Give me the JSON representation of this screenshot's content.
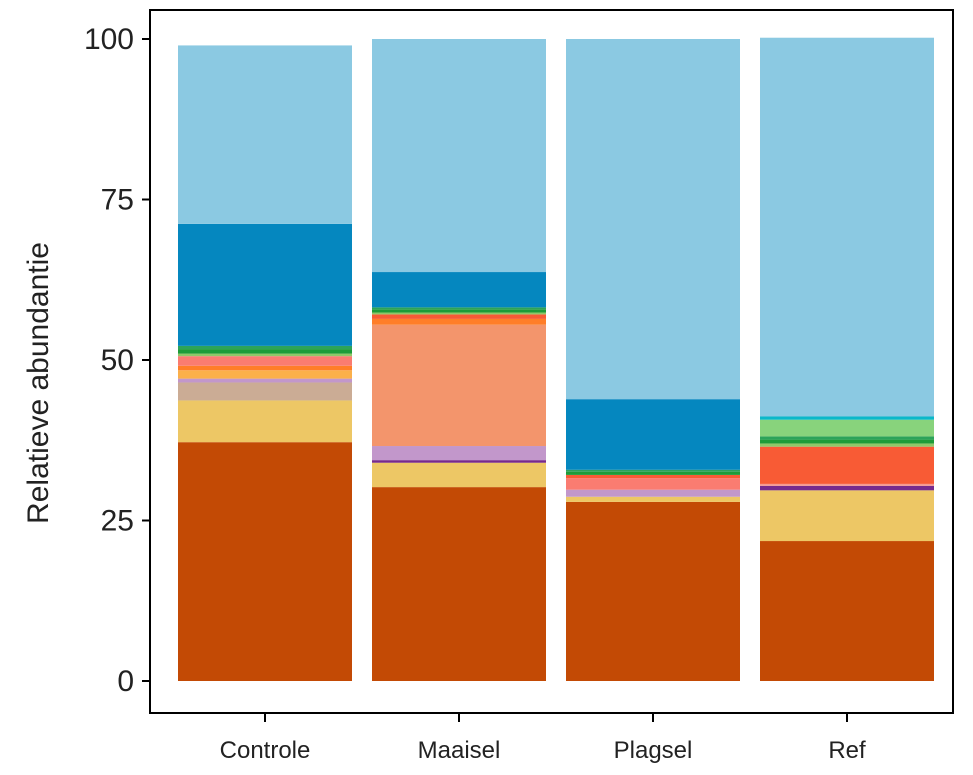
{
  "chart_data": {
    "type": "bar",
    "stacked": true,
    "title": "",
    "xlabel": "",
    "ylabel": "Relatieve abundantie",
    "ylim": [
      0,
      100
    ],
    "yticks": [
      "0",
      "25",
      "50",
      "75",
      "100"
    ],
    "grid": false,
    "legend": "none",
    "categories": [
      "Controle",
      "Maaisel",
      "Plagsel",
      "Ref"
    ],
    "series": [
      {
        "color": "#c34a05",
        "values": [
          37.2,
          30.2,
          27.9,
          21.8
        ]
      },
      {
        "color": "#edc765",
        "values": [
          6.5,
          3.8,
          0.8,
          7.9
        ]
      },
      {
        "color": "#cbac95",
        "values": [
          2.8,
          0,
          0,
          0
        ]
      },
      {
        "color": "#772a8c",
        "values": [
          0,
          0.4,
          0,
          0.7
        ]
      },
      {
        "color": "#c297cb",
        "values": [
          0.6,
          2.2,
          1.1,
          0
        ]
      },
      {
        "color": "#f69a91",
        "values": [
          0,
          0,
          0,
          0.3
        ]
      },
      {
        "color": "#f3956c",
        "values": [
          0,
          18.9,
          0,
          0
        ]
      },
      {
        "color": "#fbb04a",
        "values": [
          1.3,
          0,
          0,
          0
        ]
      },
      {
        "color": "#ff7e29",
        "values": [
          0.7,
          0.9,
          0,
          0
        ]
      },
      {
        "color": "#fa7c71",
        "values": [
          1.5,
          0,
          1.8,
          0
        ]
      },
      {
        "color": "#f85b35",
        "values": [
          0,
          0.7,
          0.5,
          5.8
        ]
      },
      {
        "color": "#8fc869",
        "values": [
          0.4,
          0.3,
          0,
          0.5
        ]
      },
      {
        "color": "#1d9c39",
        "values": [
          0.7,
          0.5,
          0.5,
          0.6
        ]
      },
      {
        "color": "#2ca35a",
        "values": [
          0.5,
          0.3,
          0.3,
          0.5
        ]
      },
      {
        "color": "#88d37c",
        "values": [
          0,
          0,
          0,
          2.6
        ]
      },
      {
        "color": "#0bb8c9",
        "values": [
          0,
          0,
          0,
          0.5
        ]
      },
      {
        "color": "#0587bf",
        "values": [
          19.0,
          5.5,
          11.0,
          0
        ]
      },
      {
        "color": "#8bc9e2",
        "values": [
          27.8,
          36.3,
          56.1,
          59.0
        ]
      }
    ]
  }
}
